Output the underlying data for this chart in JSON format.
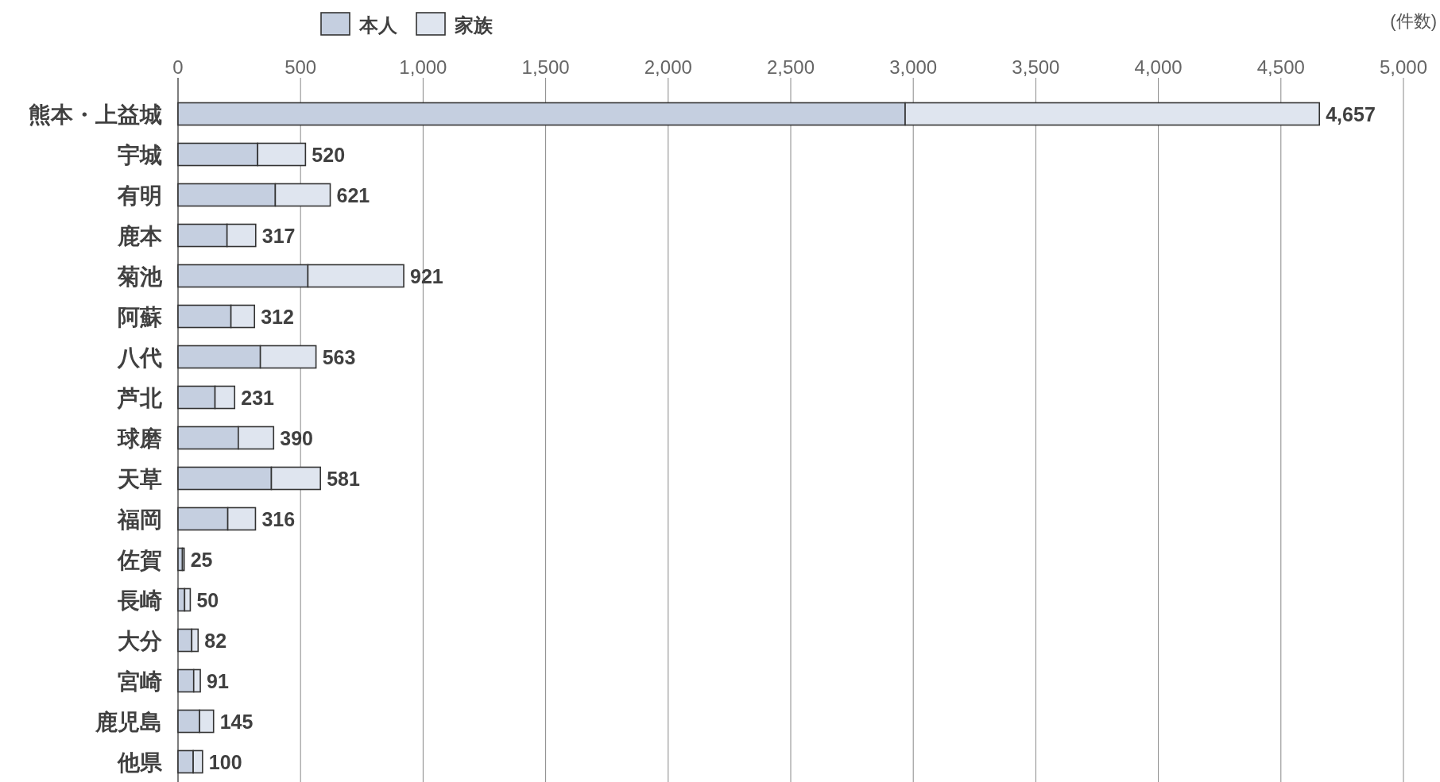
{
  "chart_data": {
    "type": "bar",
    "orientation": "horizontal",
    "stacked": true,
    "categories": [
      "熊本・上益城",
      "宇城",
      "有明",
      "鹿本",
      "菊池",
      "阿蘇",
      "八代",
      "芦北",
      "球磨",
      "天草",
      "福岡",
      "佐賀",
      "長崎",
      "大分",
      "宮崎",
      "鹿児島",
      "他県"
    ],
    "series": [
      {
        "name": "本人",
        "color": "#c5cfe0",
        "values": [
          2967,
          325,
          397,
          200,
          530,
          216,
          336,
          151,
          246,
          381,
          203,
          18,
          27,
          56,
          64,
          88,
          62
        ]
      },
      {
        "name": "家族",
        "color": "#dfe5ef",
        "values": [
          1690,
          195,
          224,
          117,
          391,
          96,
          227,
          80,
          144,
          200,
          113,
          7,
          23,
          26,
          27,
          57,
          38
        ]
      }
    ],
    "totals": [
      "4,657",
      "520",
      "621",
      "317",
      "921",
      "312",
      "563",
      "231",
      "390",
      "581",
      "316",
      "25",
      "50",
      "82",
      "91",
      "145",
      "100"
    ],
    "xlim": [
      0,
      5000
    ],
    "xticks": [
      0,
      {
        "value": 500,
        "label": "500"
      },
      {
        "value": 1000,
        "label": "1,000"
      },
      {
        "value": 1500,
        "label": "1,500"
      },
      {
        "value": 2000,
        "label": "2,000"
      },
      {
        "value": 2500,
        "label": "2,500"
      },
      {
        "value": 3000,
        "label": "3,000"
      },
      {
        "value": 3500,
        "label": "3,500"
      },
      {
        "value": 4000,
        "label": "4,000"
      },
      {
        "value": 4500,
        "label": "4,500"
      },
      {
        "value": 5000,
        "label": "5,000"
      }
    ],
    "grid": "x",
    "legend": "top left",
    "annotations": [
      "(件数)"
    ]
  }
}
